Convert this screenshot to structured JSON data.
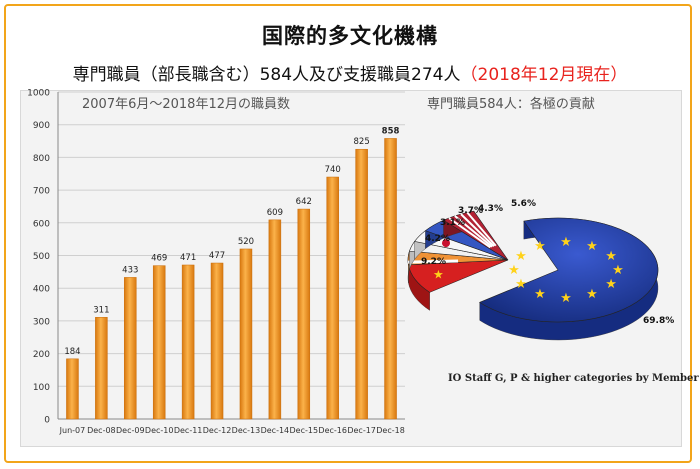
{
  "title": "国際的多文化機構",
  "subtitle": {
    "main": "専門職員（部長職含む）584人及び支援職員274人",
    "date": "（2018年12月現在）"
  },
  "colors": {
    "border": "#f2a51a",
    "date_text": "#e8231e",
    "bar": "#f39a25",
    "eu": "#1f3a9e",
    "china": "#d62020"
  },
  "chart_data": [
    {
      "type": "bar",
      "title": "2007年6月〜2018年12月の職員数",
      "categories": [
        "Jun-07",
        "Dec-08",
        "Dec-09",
        "Dec-10",
        "Dec-11",
        "Dec-12",
        "Dec-13",
        "Dec-14",
        "Dec-15",
        "Dec-16",
        "Dec-17",
        "Dec-18"
      ],
      "values": [
        184,
        311,
        433,
        469,
        471,
        477,
        520,
        609,
        642,
        740,
        825,
        858
      ],
      "ylim": [
        0,
        1000
      ],
      "yticks": [
        0,
        100,
        200,
        300,
        400,
        500,
        600,
        700,
        800,
        900,
        1000
      ],
      "xlabel": "",
      "ylabel": "",
      "grid": true
    },
    {
      "type": "pie",
      "title": "専門職員584人：各極の貢献",
      "caption": "IO Staff G, P & higher categories by Member",
      "slices": [
        {
          "name": "EU",
          "value": 69.8,
          "label": "69.8%",
          "color": "#1f3a9e",
          "flag": "eu-flag"
        },
        {
          "name": "China",
          "value": 9.2,
          "label": "9.2%",
          "color": "#d62020",
          "flag": "china-flag"
        },
        {
          "name": "India",
          "value": 4.2,
          "label": "4.2%",
          "color": "#f4f4f4",
          "flag": "india-flag"
        },
        {
          "name": "Korea",
          "value": 3.1,
          "label": "3.1%",
          "color": "#eeeeee",
          "flag": "korea-flag"
        },
        {
          "name": "Japan",
          "value": 3.7,
          "label": "3.7%",
          "color": "#f8f8f8",
          "flag": "japan-flag"
        },
        {
          "name": "Russia",
          "value": 4.3,
          "label": "4.3%",
          "color": "#3b57c4",
          "flag": "russia-flag"
        },
        {
          "name": "USA",
          "value": 5.6,
          "label": "5.6%",
          "color": "#b22234",
          "flag": "usa-flag"
        }
      ]
    }
  ]
}
